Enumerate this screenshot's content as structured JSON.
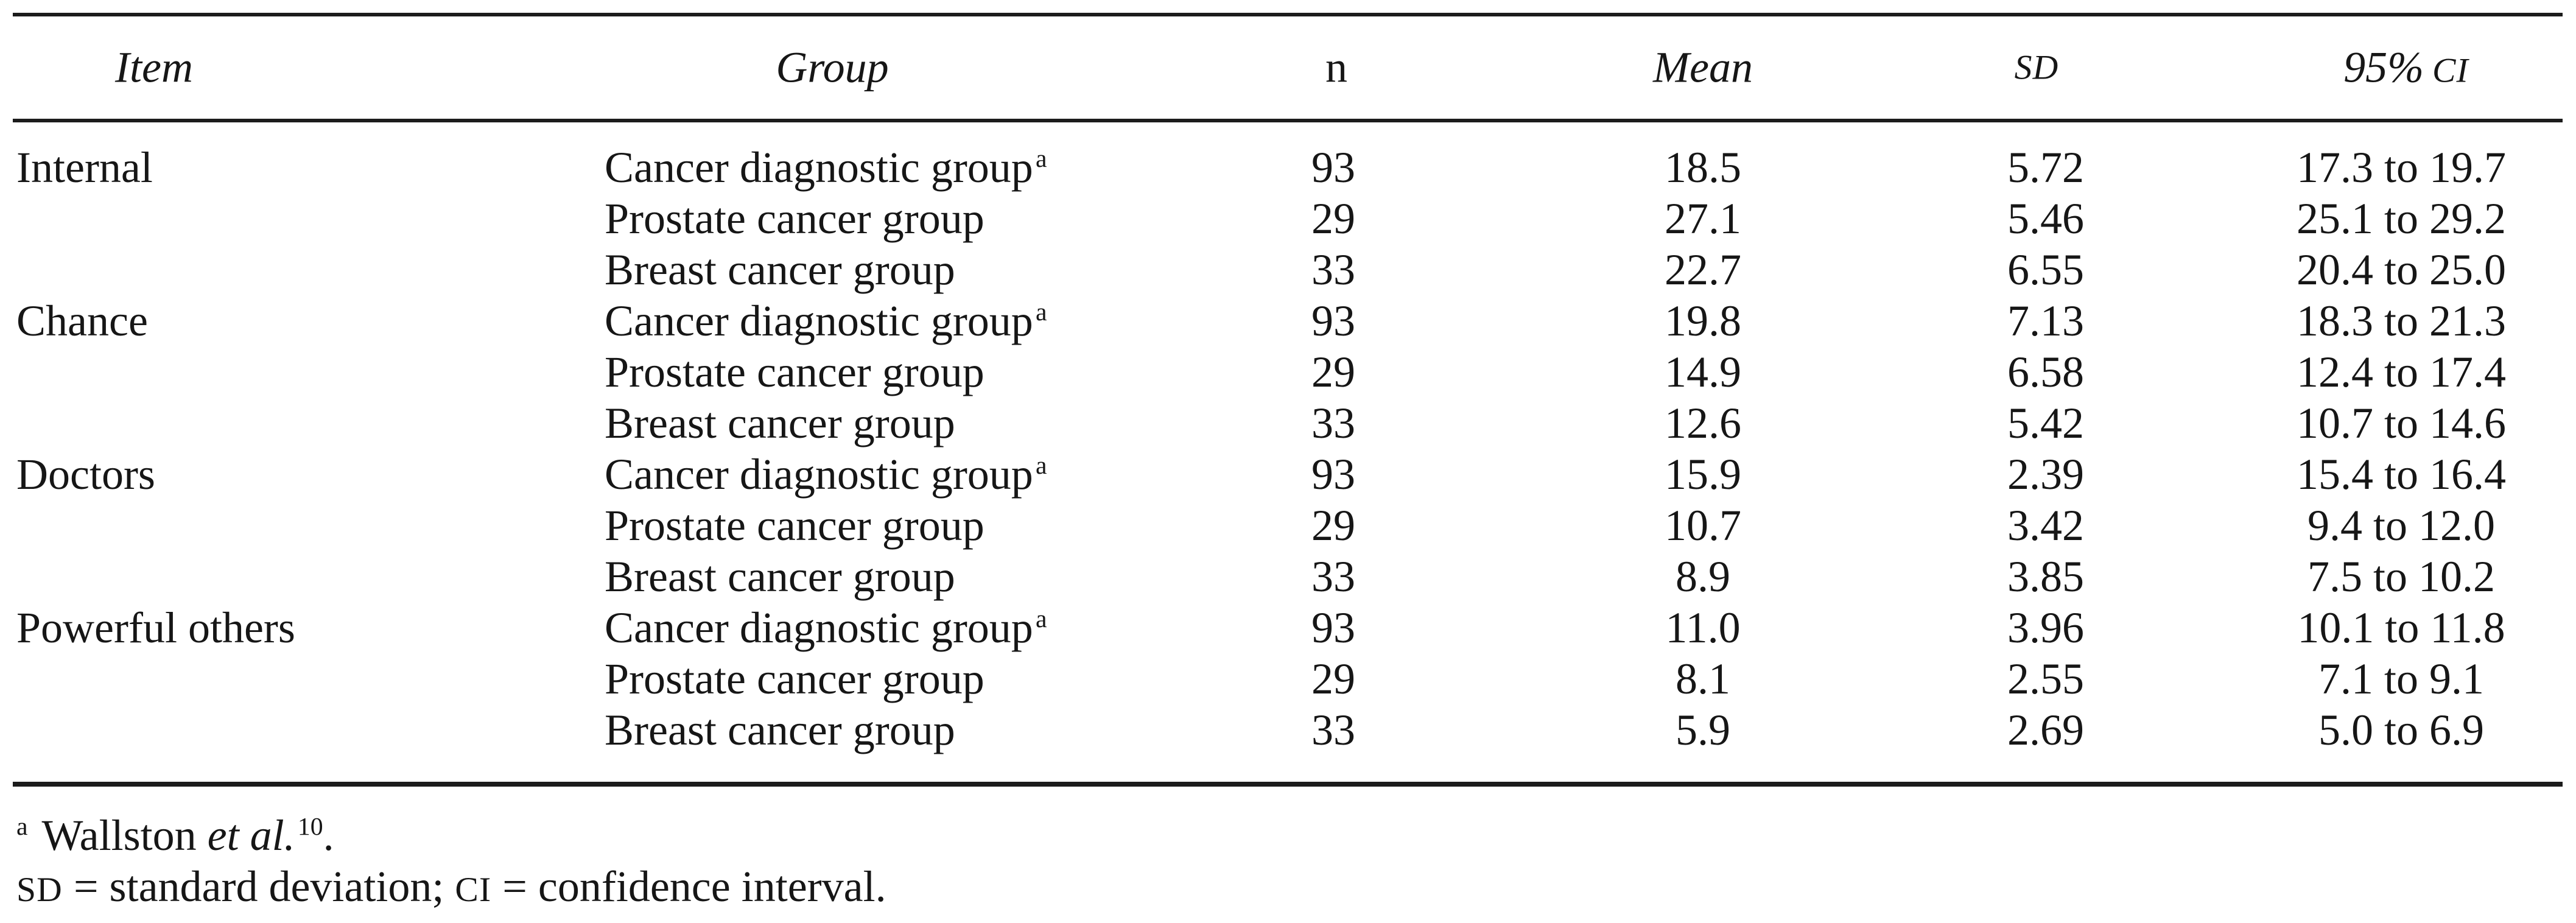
{
  "table": {
    "headers": {
      "item": "Item",
      "group": "Group",
      "n": "n",
      "mean": "Mean",
      "sd": "SD",
      "ci_prefix": "95%",
      "ci_sc": "CI"
    },
    "rows": [
      {
        "item": "Internal",
        "group": "Cancer diagnostic group",
        "sup": "a",
        "n": "93",
        "mean": "18.5",
        "sd": "5.72",
        "ci": "17.3 to 19.7"
      },
      {
        "group": "Prostate cancer group",
        "n": "29",
        "mean": "27.1",
        "sd": "5.46",
        "ci": "25.1 to 29.2"
      },
      {
        "group": "Breast cancer group",
        "n": "33",
        "mean": "22.7",
        "sd": "6.55",
        "ci": "20.4 to 25.0"
      },
      {
        "item": "Chance",
        "group": "Cancer diagnostic group",
        "sup": "a",
        "n": "93",
        "mean": "19.8",
        "sd": "7.13",
        "ci": "18.3 to 21.3"
      },
      {
        "group": "Prostate cancer group",
        "n": "29",
        "mean": "14.9",
        "sd": "6.58",
        "ci": "12.4 to 17.4"
      },
      {
        "group": "Breast cancer group",
        "n": "33",
        "mean": "12.6",
        "sd": "5.42",
        "ci": "10.7 to 14.6"
      },
      {
        "item": "Doctors",
        "group": "Cancer diagnostic group",
        "sup": "a",
        "n": "93",
        "mean": "15.9",
        "sd": "2.39",
        "ci": "15.4 to 16.4"
      },
      {
        "group": "Prostate cancer group",
        "n": "29",
        "mean": "10.7",
        "sd": "3.42",
        "ci": "9.4 to 12.0"
      },
      {
        "group": "Breast cancer group",
        "n": "33",
        "mean": "8.9",
        "sd": "3.85",
        "ci": "7.5 to 10.2"
      },
      {
        "item": "Powerful others",
        "group": "Cancer diagnostic group",
        "sup": "a",
        "n": "93",
        "mean": "11.0",
        "sd": "3.96",
        "ci": "10.1 to 11.8"
      },
      {
        "group": "Prostate cancer group",
        "n": "29",
        "mean": "8.1",
        "sd": "2.55",
        "ci": "7.1 to 9.1"
      },
      {
        "group": "Breast cancer group",
        "n": "33",
        "mean": "5.9",
        "sd": "2.69",
        "ci": "5.0 to 6.9"
      }
    ],
    "footnotes": {
      "sup_a": "a",
      "wallston": "Wallston ",
      "etal": "et al.",
      "ref": "10",
      "period": ".",
      "sd_label": "SD",
      "line2_mid1": " = standard deviation; ",
      "ci_label": "CI",
      "line2_mid2": " = confidence interval."
    }
  }
}
